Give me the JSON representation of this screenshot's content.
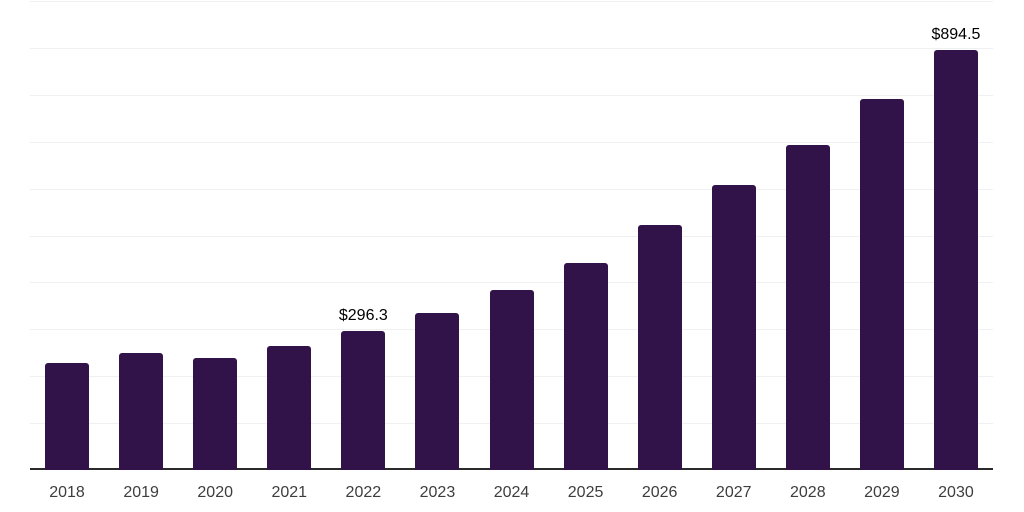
{
  "chart_data": {
    "type": "bar",
    "title": "",
    "xlabel": "",
    "ylabel": "",
    "categories": [
      "2018",
      "2019",
      "2020",
      "2021",
      "2022",
      "2023",
      "2024",
      "2025",
      "2026",
      "2027",
      "2028",
      "2029",
      "2030"
    ],
    "values": [
      227.3,
      248.6,
      239.2,
      264.1,
      296.3,
      334.4,
      383.4,
      442.0,
      522.3,
      607.1,
      692.3,
      790.2,
      894.5
    ],
    "data_labels": [
      "",
      "",
      "",
      "",
      "$296.3",
      "",
      "",
      "",
      "",
      "",
      "",
      "",
      "$894.5"
    ],
    "ylim": [
      0,
      1000
    ],
    "gridline_interval": 100,
    "grid_on": true,
    "legend_position": "none",
    "colors": {
      "bar": "#321349",
      "gridline": "#f0f0f2",
      "axis_line": "#2a2a2a",
      "value_label": "#000000",
      "tick_label": "#3d3d3d",
      "background": "#ffffff"
    }
  }
}
